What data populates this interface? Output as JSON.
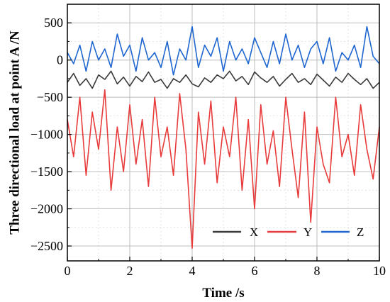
{
  "chart_data": {
    "type": "line",
    "xlabel": "Time /s",
    "ylabel": "Three directional load at point A /N",
    "xlim": [
      0,
      10
    ],
    "ylim": [
      -2700,
      750
    ],
    "xticks": [
      0,
      2,
      4,
      6,
      8,
      10
    ],
    "yticks": [
      500,
      0,
      -500,
      -1000,
      -1500,
      -2000,
      -2500
    ],
    "grid": true,
    "legend_position": "bottom-right",
    "series": [
      {
        "name": "X",
        "color": "#3a3a3a",
        "x": [
          0,
          0.2,
          0.4,
          0.6,
          0.8,
          1.0,
          1.2,
          1.4,
          1.6,
          1.8,
          2.0,
          2.2,
          2.4,
          2.6,
          2.8,
          3.0,
          3.2,
          3.4,
          3.6,
          3.8,
          4.0,
          4.2,
          4.4,
          4.6,
          4.8,
          5.0,
          5.2,
          5.4,
          5.6,
          5.8,
          6.0,
          6.2,
          6.4,
          6.6,
          6.8,
          7.0,
          7.2,
          7.4,
          7.6,
          7.8,
          8.0,
          8.2,
          8.4,
          8.6,
          8.8,
          9.0,
          9.2,
          9.4,
          9.6,
          9.8,
          10.0
        ],
        "values": [
          -300,
          -180,
          -340,
          -250,
          -380,
          -200,
          -260,
          -150,
          -320,
          -230,
          -350,
          -220,
          -290,
          -160,
          -300,
          -260,
          -380,
          -250,
          -300,
          -200,
          -320,
          -360,
          -240,
          -300,
          -200,
          -250,
          -150,
          -280,
          -220,
          -330,
          -160,
          -240,
          -300,
          -220,
          -350,
          -260,
          -180,
          -300,
          -250,
          -330,
          -190,
          -270,
          -350,
          -230,
          -300,
          -180,
          -260,
          -330,
          -250,
          -380,
          -300
        ]
      },
      {
        "name": "Y",
        "color": "#e83b3b",
        "x": [
          0,
          0.2,
          0.4,
          0.6,
          0.8,
          1.0,
          1.2,
          1.4,
          1.6,
          1.8,
          2.0,
          2.2,
          2.4,
          2.6,
          2.8,
          3.0,
          3.2,
          3.4,
          3.6,
          3.8,
          4.0,
          4.2,
          4.4,
          4.6,
          4.8,
          5.0,
          5.2,
          5.4,
          5.6,
          5.8,
          6.0,
          6.2,
          6.4,
          6.6,
          6.8,
          7.0,
          7.2,
          7.4,
          7.6,
          7.8,
          8.0,
          8.2,
          8.4,
          8.6,
          8.8,
          9.0,
          9.2,
          9.4,
          9.6,
          9.8,
          10.0
        ],
        "values": [
          -800,
          -1300,
          -500,
          -1550,
          -700,
          -1200,
          -400,
          -1750,
          -900,
          -1500,
          -600,
          -1400,
          -800,
          -1700,
          -500,
          -1300,
          -900,
          -1550,
          -450,
          -1200,
          -2530,
          -700,
          -1400,
          -550,
          -1650,
          -900,
          -1300,
          -500,
          -1750,
          -800,
          -2000,
          -600,
          -1400,
          -950,
          -1700,
          -500,
          -1200,
          -1850,
          -700,
          -2180,
          -900,
          -1400,
          -1650,
          -500,
          -1300,
          -1000,
          -1550,
          -600,
          -1200,
          -1600,
          -900
        ]
      },
      {
        "name": "Z",
        "color": "#1f66d1",
        "x": [
          0,
          0.2,
          0.4,
          0.6,
          0.8,
          1.0,
          1.2,
          1.4,
          1.6,
          1.8,
          2.0,
          2.2,
          2.4,
          2.6,
          2.8,
          3.0,
          3.2,
          3.4,
          3.6,
          3.8,
          4.0,
          4.2,
          4.4,
          4.6,
          4.8,
          5.0,
          5.2,
          5.4,
          5.6,
          5.8,
          6.0,
          6.2,
          6.4,
          6.6,
          6.8,
          7.0,
          7.2,
          7.4,
          7.6,
          7.8,
          8.0,
          8.2,
          8.4,
          8.6,
          8.8,
          9.0,
          9.2,
          9.4,
          9.6,
          9.8,
          10.0
        ],
        "values": [
          100,
          -50,
          200,
          -150,
          250,
          0,
          150,
          -100,
          350,
          50,
          200,
          -150,
          300,
          0,
          100,
          -100,
          250,
          -200,
          150,
          0,
          450,
          -100,
          200,
          50,
          300,
          -150,
          250,
          0,
          150,
          -50,
          300,
          100,
          -100,
          250,
          -50,
          350,
          0,
          200,
          -100,
          150,
          250,
          -50,
          300,
          -150,
          100,
          0,
          200,
          -100,
          450,
          50,
          -50
        ]
      }
    ]
  }
}
